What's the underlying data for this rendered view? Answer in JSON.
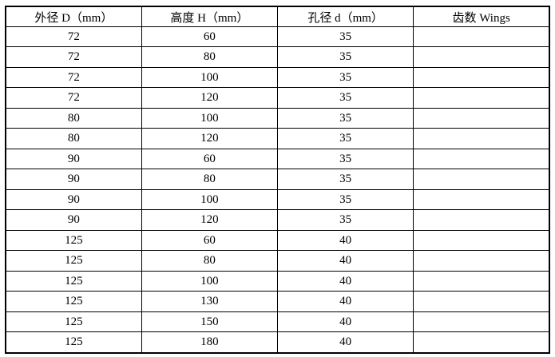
{
  "table": {
    "columns": [
      {
        "label": "外径 D（mm）"
      },
      {
        "label": "高度 H（mm）"
      },
      {
        "label": "孔径 d（mm）"
      },
      {
        "label": "齿数 Wings"
      }
    ],
    "rows": [
      [
        "72",
        "60",
        "35",
        ""
      ],
      [
        "72",
        "80",
        "35",
        ""
      ],
      [
        "72",
        "100",
        "35",
        ""
      ],
      [
        "72",
        "120",
        "35",
        ""
      ],
      [
        "80",
        "100",
        "35",
        ""
      ],
      [
        "80",
        "120",
        "35",
        ""
      ],
      [
        "90",
        "60",
        "35",
        ""
      ],
      [
        "90",
        "80",
        "35",
        ""
      ],
      [
        "90",
        "100",
        "35",
        ""
      ],
      [
        "90",
        "120",
        "35",
        ""
      ],
      [
        "125",
        "60",
        "40",
        ""
      ],
      [
        "125",
        "80",
        "40",
        ""
      ],
      [
        "125",
        "100",
        "40",
        ""
      ],
      [
        "125",
        "130",
        "40",
        ""
      ],
      [
        "125",
        "150",
        "40",
        ""
      ],
      [
        "125",
        "180",
        "40",
        ""
      ]
    ]
  },
  "chart_data": {
    "type": "table",
    "title": "",
    "columns": [
      "外径 D（mm）",
      "高度 H（mm）",
      "孔径 d（mm）",
      "齿数 Wings"
    ],
    "rows": [
      [
        72,
        60,
        35,
        null
      ],
      [
        72,
        80,
        35,
        null
      ],
      [
        72,
        100,
        35,
        null
      ],
      [
        72,
        120,
        35,
        null
      ],
      [
        80,
        100,
        35,
        null
      ],
      [
        80,
        120,
        35,
        null
      ],
      [
        90,
        60,
        35,
        null
      ],
      [
        90,
        80,
        35,
        null
      ],
      [
        90,
        100,
        35,
        null
      ],
      [
        90,
        120,
        35,
        null
      ],
      [
        125,
        60,
        40,
        null
      ],
      [
        125,
        80,
        40,
        null
      ],
      [
        125,
        100,
        40,
        null
      ],
      [
        125,
        130,
        40,
        null
      ],
      [
        125,
        150,
        40,
        null
      ],
      [
        125,
        180,
        40,
        null
      ]
    ]
  }
}
